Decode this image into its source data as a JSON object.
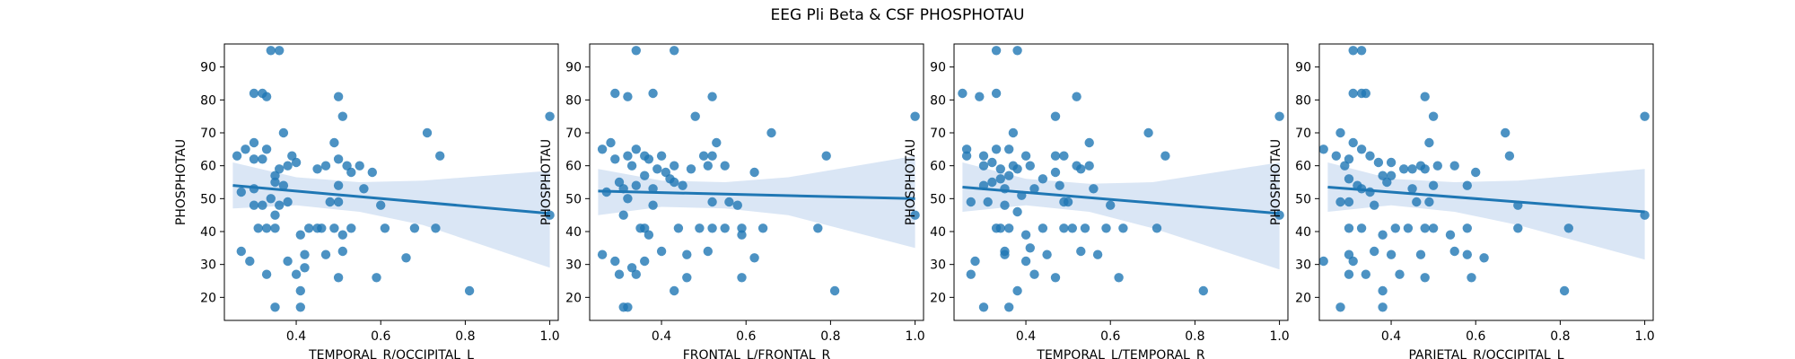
{
  "figure": {
    "title": "EEG Pli Beta & CSF PHOSPHOTAU"
  },
  "style": {
    "point_color": "#1f77b4",
    "line_color": "#1f77b4",
    "band_color": "#aec7e8"
  },
  "chart_data": [
    {
      "type": "scatter",
      "xlabel": "TEMPORAL_R/OCCIPITAL_L",
      "ylabel": "PHOSPHOTAU",
      "xlim": [
        0.23,
        1.02
      ],
      "ylim": [
        13,
        97
      ],
      "xticks": [
        "0.4",
        "0.6",
        "0.8",
        "1.0"
      ],
      "yticks": [
        "20",
        "30",
        "40",
        "50",
        "60",
        "70",
        "80",
        "90"
      ],
      "regression": {
        "x": [
          0.25,
          1.0
        ],
        "y": [
          54,
          45.5
        ]
      },
      "ci_band": {
        "x": [
          0.25,
          0.4,
          0.55,
          0.7,
          1.0
        ],
        "upper": [
          61,
          56.5,
          55,
          55.5,
          58.5
        ],
        "lower": [
          47,
          48,
          46,
          42,
          29
        ]
      },
      "points": [
        [
          0.34,
          95
        ],
        [
          0.36,
          95
        ],
        [
          0.3,
          82
        ],
        [
          0.32,
          82
        ],
        [
          0.33,
          81
        ],
        [
          0.5,
          81
        ],
        [
          0.51,
          75
        ],
        [
          0.71,
          70
        ],
        [
          1.0,
          75
        ],
        [
          0.37,
          70
        ],
        [
          0.3,
          67
        ],
        [
          0.28,
          65
        ],
        [
          0.33,
          65
        ],
        [
          0.49,
          67
        ],
        [
          0.26,
          63
        ],
        [
          0.3,
          62
        ],
        [
          0.32,
          62
        ],
        [
          0.39,
          63
        ],
        [
          0.47,
          60
        ],
        [
          0.5,
          62
        ],
        [
          0.52,
          60
        ],
        [
          0.55,
          60
        ],
        [
          0.53,
          58
        ],
        [
          0.58,
          58
        ],
        [
          0.38,
          60
        ],
        [
          0.4,
          61
        ],
        [
          0.36,
          59
        ],
        [
          0.35,
          57
        ],
        [
          0.35,
          55
        ],
        [
          0.37,
          54
        ],
        [
          0.27,
          52
        ],
        [
          0.3,
          53
        ],
        [
          0.45,
          59
        ],
        [
          0.5,
          54
        ],
        [
          0.56,
          53
        ],
        [
          0.48,
          49
        ],
        [
          0.5,
          49
        ],
        [
          0.6,
          48
        ],
        [
          0.34,
          50
        ],
        [
          0.38,
          49
        ],
        [
          0.36,
          48
        ],
        [
          0.3,
          48
        ],
        [
          0.32,
          48
        ],
        [
          0.35,
          45
        ],
        [
          0.31,
          41
        ],
        [
          0.33,
          41
        ],
        [
          0.35,
          41
        ],
        [
          0.41,
          39
        ],
        [
          0.43,
          41
        ],
        [
          0.45,
          41
        ],
        [
          0.46,
          41
        ],
        [
          0.49,
          41
        ],
        [
          0.51,
          39
        ],
        [
          0.53,
          41
        ],
        [
          0.61,
          41
        ],
        [
          0.68,
          41
        ],
        [
          0.73,
          41
        ],
        [
          1.0,
          45
        ],
        [
          0.74,
          63
        ],
        [
          0.27,
          34
        ],
        [
          0.38,
          31
        ],
        [
          0.42,
          33
        ],
        [
          0.47,
          33
        ],
        [
          0.51,
          34
        ],
        [
          0.42,
          29
        ],
        [
          0.33,
          27
        ],
        [
          0.4,
          27
        ],
        [
          0.5,
          26
        ],
        [
          0.59,
          26
        ],
        [
          0.66,
          32
        ],
        [
          0.29,
          31
        ],
        [
          0.81,
          22
        ],
        [
          0.41,
          22
        ],
        [
          0.35,
          17
        ],
        [
          0.41,
          17
        ]
      ]
    },
    {
      "type": "scatter",
      "xlabel": "FRONTAL_L/FRONTAL_R",
      "ylabel": "PHOSPHOTAU",
      "xlim": [
        0.23,
        1.02
      ],
      "ylim": [
        13,
        97
      ],
      "xticks": [
        "0.4",
        "0.6",
        "0.8",
        "1.0"
      ],
      "yticks": [
        "20",
        "30",
        "40",
        "50",
        "60",
        "70",
        "80",
        "90"
      ],
      "regression": {
        "x": [
          0.25,
          1.0
        ],
        "y": [
          52.3,
          50
        ]
      },
      "ci_band": {
        "x": [
          0.25,
          0.4,
          0.55,
          0.7,
          1.0
        ],
        "upper": [
          59,
          55.5,
          55,
          56.5,
          63
        ],
        "lower": [
          45,
          47.5,
          47,
          45,
          35
        ]
      },
      "points": [
        [
          0.34,
          95
        ],
        [
          0.43,
          95
        ],
        [
          0.29,
          82
        ],
        [
          0.38,
          82
        ],
        [
          0.32,
          81
        ],
        [
          0.52,
          81
        ],
        [
          0.48,
          75
        ],
        [
          1.0,
          75
        ],
        [
          0.66,
          70
        ],
        [
          0.26,
          65
        ],
        [
          0.28,
          67
        ],
        [
          0.34,
          65
        ],
        [
          0.53,
          67
        ],
        [
          0.32,
          63
        ],
        [
          0.36,
          63
        ],
        [
          0.4,
          63
        ],
        [
          0.5,
          63
        ],
        [
          0.52,
          63
        ],
        [
          0.29,
          62
        ],
        [
          0.33,
          60
        ],
        [
          0.37,
          62
        ],
        [
          0.43,
          60
        ],
        [
          0.47,
          59
        ],
        [
          0.51,
          60
        ],
        [
          0.55,
          60
        ],
        [
          0.62,
          58
        ],
        [
          0.79,
          63
        ],
        [
          0.36,
          57
        ],
        [
          0.39,
          59
        ],
        [
          0.41,
          58
        ],
        [
          0.3,
          55
        ],
        [
          0.31,
          53
        ],
        [
          0.34,
          54
        ],
        [
          0.38,
          53
        ],
        [
          0.42,
          56
        ],
        [
          0.45,
          54
        ],
        [
          0.27,
          52
        ],
        [
          0.32,
          50
        ],
        [
          0.38,
          48
        ],
        [
          0.43,
          55
        ],
        [
          0.52,
          49
        ],
        [
          0.56,
          49
        ],
        [
          0.58,
          48
        ],
        [
          0.31,
          45
        ],
        [
          0.35,
          41
        ],
        [
          0.36,
          41
        ],
        [
          0.37,
          39
        ],
        [
          0.44,
          41
        ],
        [
          0.49,
          41
        ],
        [
          0.52,
          41
        ],
        [
          0.55,
          41
        ],
        [
          0.59,
          41
        ],
        [
          0.59,
          39
        ],
        [
          0.64,
          41
        ],
        [
          0.77,
          41
        ],
        [
          1.0,
          45
        ],
        [
          0.26,
          33
        ],
        [
          0.29,
          31
        ],
        [
          0.36,
          31
        ],
        [
          0.4,
          34
        ],
        [
          0.46,
          33
        ],
        [
          0.51,
          34
        ],
        [
          0.62,
          32
        ],
        [
          0.3,
          27
        ],
        [
          0.34,
          27
        ],
        [
          0.46,
          26
        ],
        [
          0.59,
          26
        ],
        [
          0.81,
          22
        ],
        [
          0.43,
          22
        ],
        [
          0.31,
          17
        ],
        [
          0.32,
          17
        ],
        [
          0.33,
          29
        ]
      ]
    },
    {
      "type": "scatter",
      "xlabel": "TEMPORAL_L/TEMPORAL_R",
      "ylabel": "PHOSPHOTAU",
      "xlim": [
        0.23,
        1.02
      ],
      "ylim": [
        13,
        97
      ],
      "xticks": [
        "0.4",
        "0.6",
        "0.8",
        "1.0"
      ],
      "yticks": [
        "20",
        "30",
        "40",
        "50",
        "60",
        "70",
        "80",
        "90"
      ],
      "regression": {
        "x": [
          0.25,
          1.0
        ],
        "y": [
          53.5,
          45.5
        ]
      },
      "ci_band": {
        "x": [
          0.25,
          0.4,
          0.55,
          0.7,
          1.0
        ],
        "upper": [
          61,
          56,
          54.5,
          55,
          61
        ],
        "lower": [
          46,
          48,
          46,
          41,
          28.5
        ]
      },
      "points": [
        [
          0.33,
          95
        ],
        [
          0.38,
          95
        ],
        [
          0.25,
          82
        ],
        [
          0.29,
          81
        ],
        [
          0.33,
          82
        ],
        [
          0.52,
          81
        ],
        [
          0.47,
          75
        ],
        [
          1.0,
          75
        ],
        [
          0.69,
          70
        ],
        [
          0.37,
          70
        ],
        [
          0.26,
          65
        ],
        [
          0.3,
          63
        ],
        [
          0.33,
          65
        ],
        [
          0.36,
          65
        ],
        [
          0.4,
          63
        ],
        [
          0.47,
          63
        ],
        [
          0.49,
          63
        ],
        [
          0.55,
          67
        ],
        [
          0.73,
          63
        ],
        [
          0.26,
          63
        ],
        [
          0.3,
          60
        ],
        [
          0.32,
          61
        ],
        [
          0.34,
          59
        ],
        [
          0.37,
          60
        ],
        [
          0.38,
          59
        ],
        [
          0.41,
          60
        ],
        [
          0.44,
          56
        ],
        [
          0.47,
          58
        ],
        [
          0.52,
          60
        ],
        [
          0.53,
          59
        ],
        [
          0.55,
          60
        ],
        [
          0.34,
          56
        ],
        [
          0.36,
          57
        ],
        [
          0.3,
          54
        ],
        [
          0.32,
          55
        ],
        [
          0.35,
          53
        ],
        [
          0.39,
          51
        ],
        [
          0.42,
          53
        ],
        [
          0.48,
          54
        ],
        [
          0.56,
          53
        ],
        [
          0.27,
          49
        ],
        [
          0.31,
          49
        ],
        [
          0.35,
          48
        ],
        [
          0.38,
          46
        ],
        [
          0.49,
          49
        ],
        [
          0.5,
          49
        ],
        [
          0.6,
          48
        ],
        [
          0.33,
          41
        ],
        [
          0.34,
          41
        ],
        [
          0.36,
          41
        ],
        [
          0.4,
          39
        ],
        [
          0.44,
          41
        ],
        [
          0.49,
          41
        ],
        [
          0.51,
          41
        ],
        [
          0.54,
          41
        ],
        [
          0.59,
          41
        ],
        [
          0.63,
          41
        ],
        [
          0.71,
          41
        ],
        [
          1.0,
          45
        ],
        [
          0.35,
          34
        ],
        [
          0.35,
          33
        ],
        [
          0.41,
          35
        ],
        [
          0.45,
          33
        ],
        [
          0.53,
          34
        ],
        [
          0.57,
          33
        ],
        [
          0.28,
          31
        ],
        [
          0.4,
          31
        ],
        [
          0.27,
          27
        ],
        [
          0.42,
          27
        ],
        [
          0.47,
          26
        ],
        [
          0.62,
          26
        ],
        [
          0.82,
          22
        ],
        [
          0.38,
          22
        ],
        [
          0.3,
          17
        ],
        [
          0.36,
          17
        ]
      ]
    },
    {
      "type": "scatter",
      "xlabel": "PARIETAL_R/OCCIPITAL_L",
      "ylabel": "PHOSPHOTAU",
      "xlim": [
        0.23,
        1.02
      ],
      "ylim": [
        13,
        97
      ],
      "xticks": [
        "0.4",
        "0.6",
        "0.8",
        "1.0"
      ],
      "yticks": [
        "20",
        "30",
        "40",
        "50",
        "60",
        "70",
        "80",
        "90"
      ],
      "regression": {
        "x": [
          0.25,
          1.0
        ],
        "y": [
          53.5,
          46
        ]
      },
      "ci_band": {
        "x": [
          0.25,
          0.4,
          0.55,
          0.7,
          1.0
        ],
        "upper": [
          61,
          56,
          55,
          55.5,
          59
        ],
        "lower": [
          46,
          48,
          46,
          42,
          31.5
        ]
      },
      "points": [
        [
          0.31,
          95
        ],
        [
          0.33,
          95
        ],
        [
          0.31,
          82
        ],
        [
          0.33,
          82
        ],
        [
          0.34,
          82
        ],
        [
          0.48,
          81
        ],
        [
          0.5,
          75
        ],
        [
          1.0,
          75
        ],
        [
          0.28,
          70
        ],
        [
          0.67,
          70
        ],
        [
          0.24,
          65
        ],
        [
          0.31,
          67
        ],
        [
          0.33,
          65
        ],
        [
          0.49,
          67
        ],
        [
          0.27,
          63
        ],
        [
          0.35,
          63
        ],
        [
          0.45,
          59
        ],
        [
          0.47,
          60
        ],
        [
          0.48,
          59
        ],
        [
          0.51,
          60
        ],
        [
          0.55,
          60
        ],
        [
          0.6,
          58
        ],
        [
          0.68,
          63
        ],
        [
          0.29,
          60
        ],
        [
          0.3,
          62
        ],
        [
          0.37,
          61
        ],
        [
          0.4,
          61
        ],
        [
          0.43,
          59
        ],
        [
          0.38,
          57
        ],
        [
          0.4,
          57
        ],
        [
          0.3,
          56
        ],
        [
          0.32,
          54
        ],
        [
          0.33,
          53
        ],
        [
          0.35,
          52
        ],
        [
          0.39,
          55
        ],
        [
          0.45,
          53
        ],
        [
          0.5,
          54
        ],
        [
          0.58,
          54
        ],
        [
          0.28,
          49
        ],
        [
          0.3,
          49
        ],
        [
          0.36,
          48
        ],
        [
          0.46,
          49
        ],
        [
          0.49,
          49
        ],
        [
          0.7,
          48
        ],
        [
          0.3,
          41
        ],
        [
          0.33,
          41
        ],
        [
          0.38,
          39
        ],
        [
          0.41,
          41
        ],
        [
          0.44,
          41
        ],
        [
          0.48,
          41
        ],
        [
          0.5,
          41
        ],
        [
          0.54,
          39
        ],
        [
          0.58,
          41
        ],
        [
          0.7,
          41
        ],
        [
          0.82,
          41
        ],
        [
          1.0,
          45
        ],
        [
          0.24,
          31
        ],
        [
          0.3,
          33
        ],
        [
          0.36,
          34
        ],
        [
          0.4,
          33
        ],
        [
          0.47,
          33
        ],
        [
          0.55,
          34
        ],
        [
          0.58,
          33
        ],
        [
          0.62,
          32
        ],
        [
          0.31,
          31
        ],
        [
          0.3,
          27
        ],
        [
          0.42,
          27
        ],
        [
          0.48,
          26
        ],
        [
          0.59,
          26
        ],
        [
          0.38,
          22
        ],
        [
          0.81,
          22
        ],
        [
          0.28,
          17
        ],
        [
          0.38,
          17
        ],
        [
          0.34,
          27
        ]
      ]
    }
  ]
}
